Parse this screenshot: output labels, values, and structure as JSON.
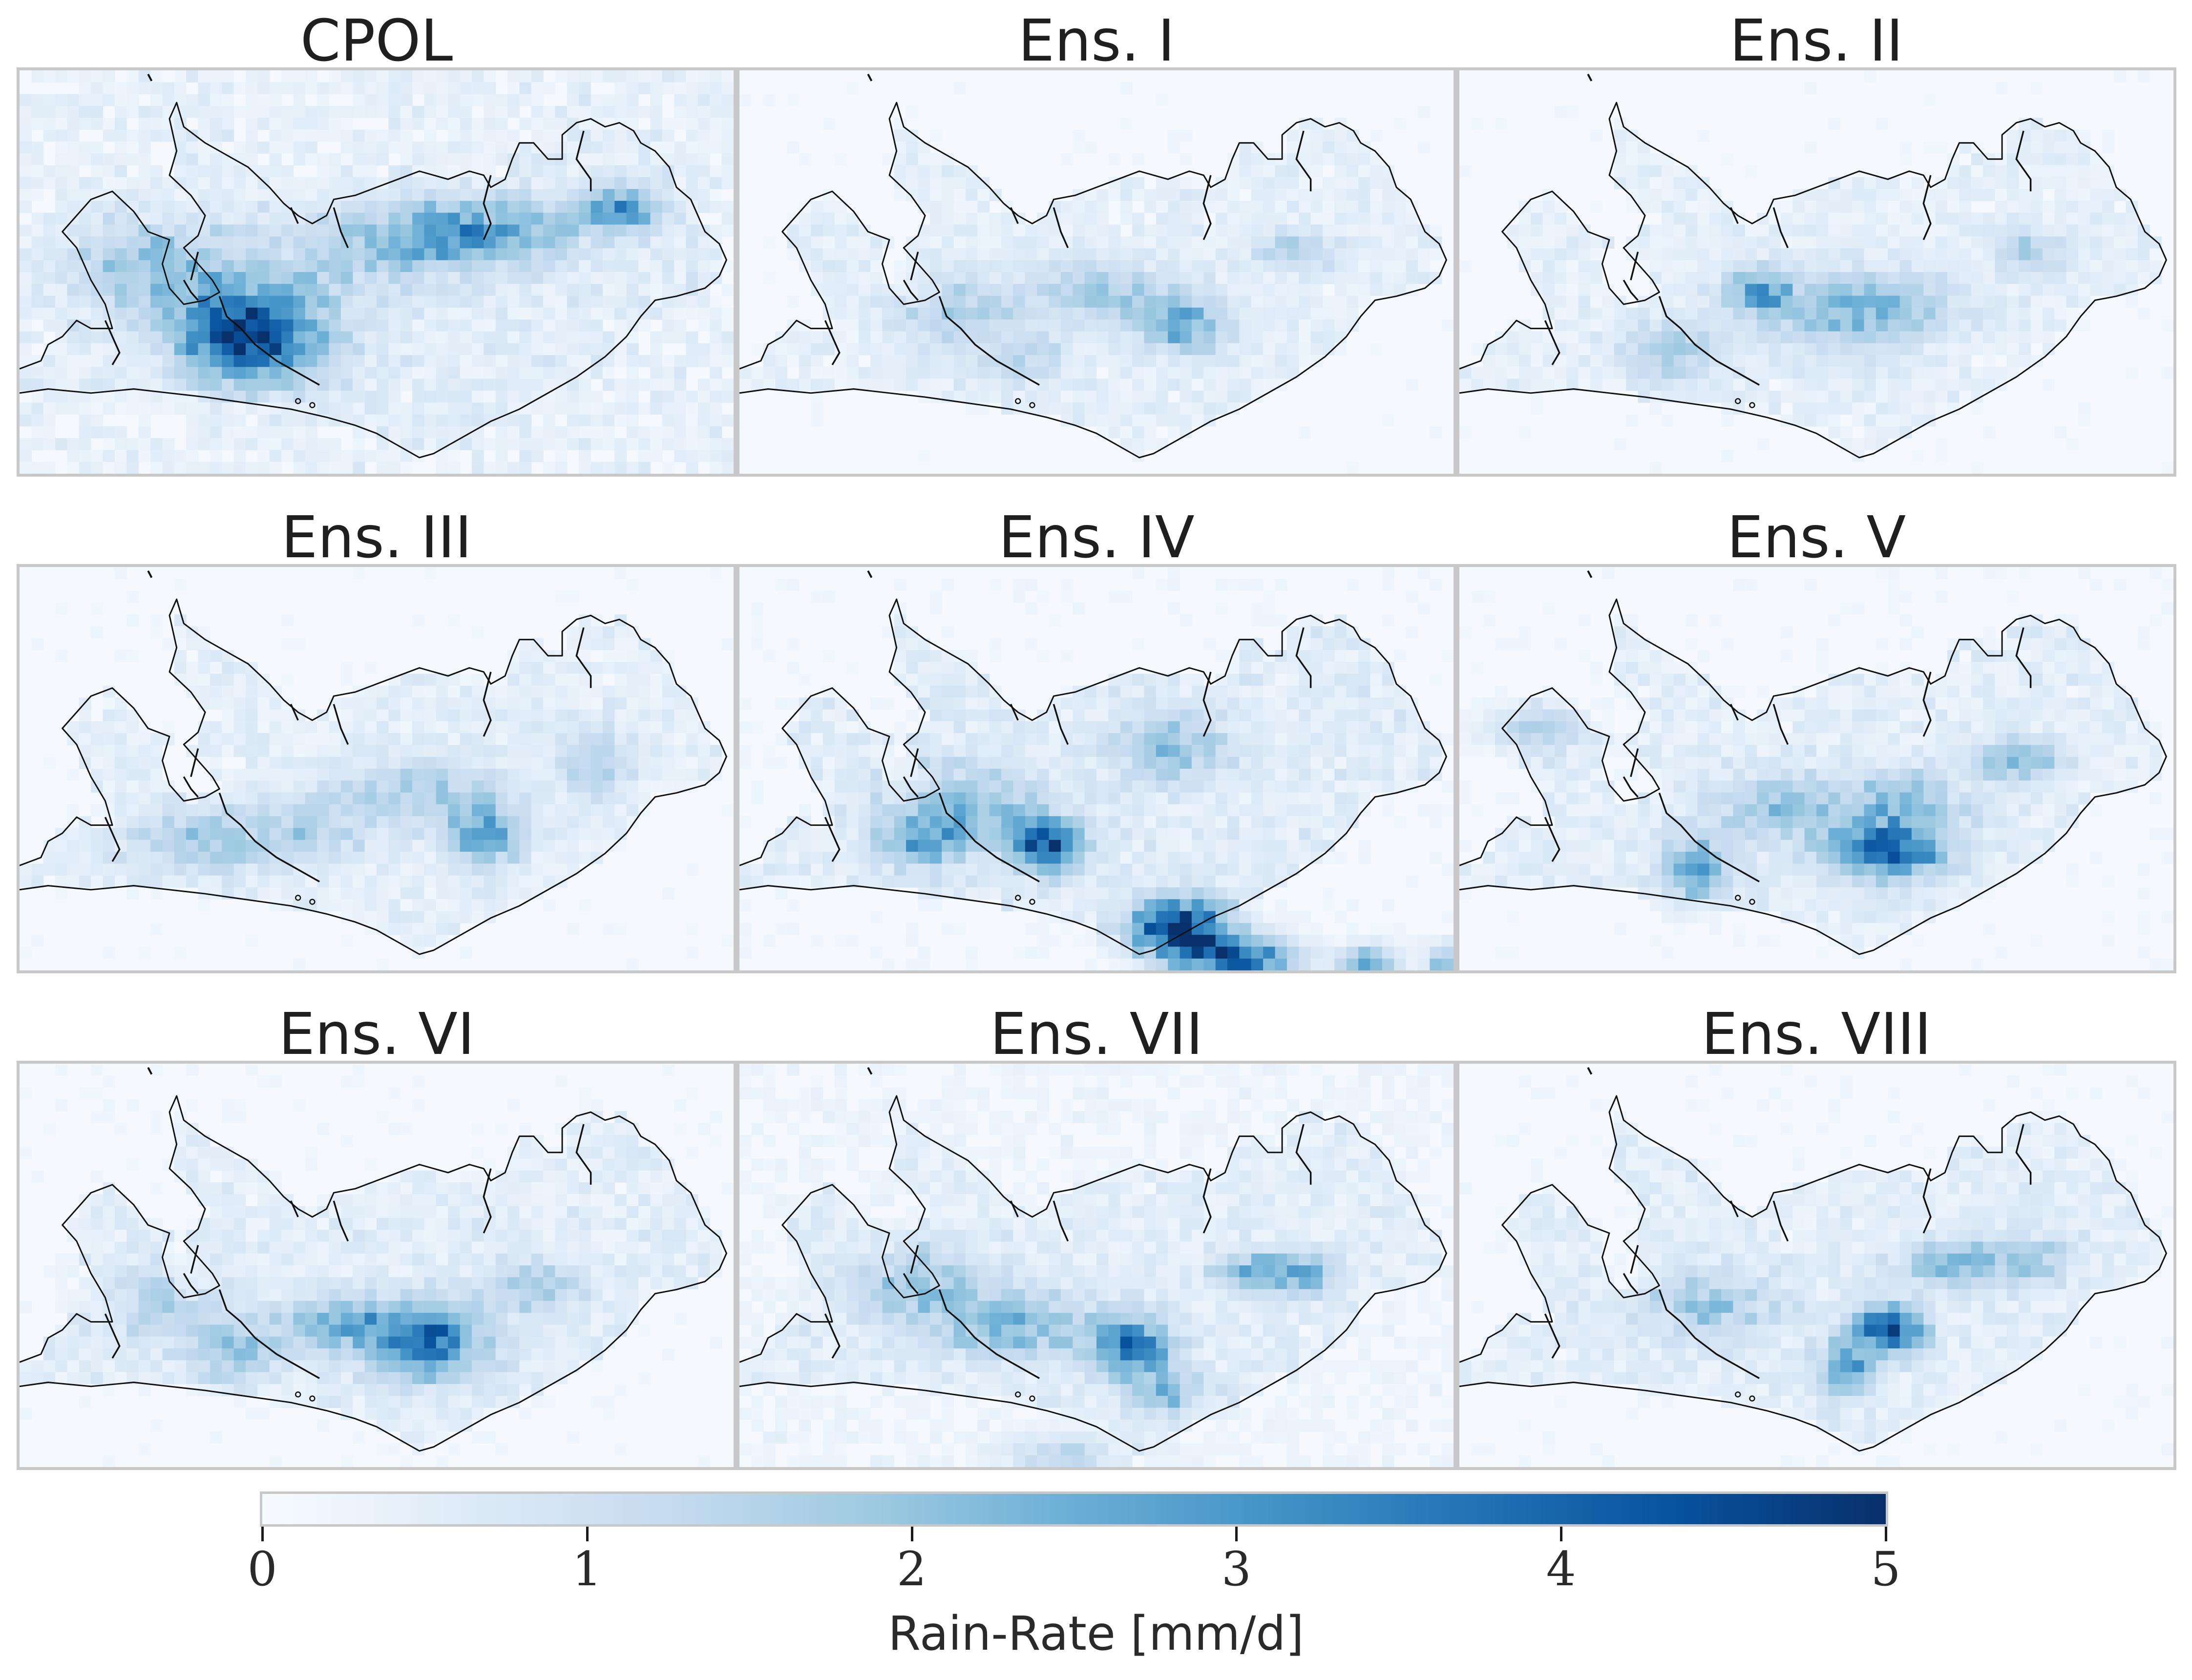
{
  "panels": [
    {
      "title": "CPOL",
      "seed": 11,
      "intensity": 1.0,
      "extra": 1.0,
      "blobs": [
        [
          0.35,
          0.65,
          0.09,
          0.11,
          0.55
        ],
        [
          0.29,
          0.66,
          0.07,
          0.1,
          0.45
        ],
        [
          0.84,
          0.35,
          0.05,
          0.05,
          0.6
        ],
        [
          0.6,
          0.4,
          0.07,
          0.07,
          0.35
        ],
        [
          0.2,
          0.5,
          0.12,
          0.12,
          0.3
        ],
        [
          0.5,
          0.45,
          0.12,
          0.1,
          0.25
        ],
        [
          0.7,
          0.4,
          0.08,
          0.08,
          0.3
        ]
      ]
    },
    {
      "title": "Ens. I",
      "seed": 23,
      "intensity": 0.8,
      "extra": 0.0,
      "blobs": [
        [
          0.62,
          0.63,
          0.06,
          0.07,
          0.55
        ],
        [
          0.5,
          0.55,
          0.1,
          0.08,
          0.3
        ],
        [
          0.3,
          0.6,
          0.08,
          0.1,
          0.3
        ],
        [
          0.78,
          0.45,
          0.06,
          0.05,
          0.3
        ],
        [
          0.4,
          0.72,
          0.06,
          0.06,
          0.25
        ]
      ]
    },
    {
      "title": "Ens. II",
      "seed": 37,
      "intensity": 0.8,
      "extra": 0.0,
      "blobs": [
        [
          0.42,
          0.55,
          0.05,
          0.06,
          0.5
        ],
        [
          0.6,
          0.58,
          0.1,
          0.08,
          0.35
        ],
        [
          0.3,
          0.7,
          0.06,
          0.08,
          0.35
        ],
        [
          0.8,
          0.45,
          0.05,
          0.05,
          0.3
        ],
        [
          0.52,
          0.62,
          0.1,
          0.1,
          0.25
        ]
      ]
    },
    {
      "title": "Ens. III",
      "seed": 41,
      "intensity": 0.8,
      "extra": 0.0,
      "blobs": [
        [
          0.65,
          0.66,
          0.05,
          0.09,
          0.55
        ],
        [
          0.55,
          0.55,
          0.1,
          0.08,
          0.3
        ],
        [
          0.25,
          0.68,
          0.1,
          0.08,
          0.3
        ],
        [
          0.8,
          0.48,
          0.05,
          0.08,
          0.3
        ],
        [
          0.4,
          0.65,
          0.1,
          0.08,
          0.25
        ]
      ]
    },
    {
      "title": "Ens. IV",
      "seed": 53,
      "intensity": 1.0,
      "extra": 0.0,
      "blobs": [
        [
          0.43,
          0.69,
          0.05,
          0.06,
          0.7
        ],
        [
          0.62,
          0.9,
          0.07,
          0.07,
          0.9
        ],
        [
          0.7,
          0.97,
          0.08,
          0.05,
          0.7
        ],
        [
          0.32,
          0.6,
          0.1,
          0.1,
          0.35
        ],
        [
          0.6,
          0.45,
          0.08,
          0.08,
          0.3
        ],
        [
          0.88,
          0.98,
          0.04,
          0.04,
          0.5
        ],
        [
          0.99,
          0.98,
          0.03,
          0.04,
          0.4
        ],
        [
          0.25,
          0.68,
          0.06,
          0.06,
          0.35
        ]
      ]
    },
    {
      "title": "Ens. V",
      "seed": 67,
      "intensity": 0.9,
      "extra": 0.0,
      "blobs": [
        [
          0.6,
          0.71,
          0.08,
          0.06,
          0.75
        ],
        [
          0.62,
          0.6,
          0.08,
          0.08,
          0.4
        ],
        [
          0.33,
          0.75,
          0.05,
          0.08,
          0.45
        ],
        [
          0.78,
          0.48,
          0.06,
          0.05,
          0.4
        ],
        [
          0.45,
          0.6,
          0.1,
          0.08,
          0.3
        ],
        [
          0.1,
          0.4,
          0.08,
          0.06,
          0.2
        ]
      ]
    },
    {
      "title": "Ens. VI",
      "seed": 71,
      "intensity": 0.9,
      "extra": 0.0,
      "blobs": [
        [
          0.57,
          0.69,
          0.08,
          0.09,
          0.7
        ],
        [
          0.45,
          0.65,
          0.1,
          0.07,
          0.35
        ],
        [
          0.3,
          0.72,
          0.06,
          0.06,
          0.35
        ],
        [
          0.72,
          0.55,
          0.06,
          0.06,
          0.3
        ],
        [
          0.2,
          0.6,
          0.1,
          0.1,
          0.2
        ]
      ]
    },
    {
      "title": "Ens. VII",
      "seed": 83,
      "intensity": 0.9,
      "extra": 0.5,
      "blobs": [
        [
          0.55,
          0.7,
          0.06,
          0.08,
          0.65
        ],
        [
          0.38,
          0.65,
          0.1,
          0.08,
          0.4
        ],
        [
          0.72,
          0.52,
          0.05,
          0.05,
          0.45
        ],
        [
          0.8,
          0.52,
          0.04,
          0.05,
          0.4
        ],
        [
          0.25,
          0.55,
          0.1,
          0.1,
          0.3
        ],
        [
          0.6,
          0.82,
          0.05,
          0.05,
          0.35
        ],
        [
          0.45,
          0.97,
          0.08,
          0.05,
          0.25
        ]
      ]
    },
    {
      "title": "Ens. VIII",
      "seed": 97,
      "intensity": 0.9,
      "extra": 0.0,
      "blobs": [
        [
          0.6,
          0.66,
          0.05,
          0.06,
          0.8
        ],
        [
          0.54,
          0.76,
          0.04,
          0.06,
          0.55
        ],
        [
          0.7,
          0.5,
          0.08,
          0.06,
          0.35
        ],
        [
          0.35,
          0.6,
          0.1,
          0.08,
          0.3
        ],
        [
          0.8,
          0.48,
          0.06,
          0.05,
          0.25
        ]
      ]
    }
  ],
  "colorbar": {
    "label": "Rain-Rate [mm/d]",
    "ticks": [
      "0",
      "1",
      "2",
      "3",
      "4",
      "5"
    ],
    "min": 0,
    "max": 5,
    "colormap": [
      "#f7fbff",
      "#deebf7",
      "#c6dbef",
      "#9ecae1",
      "#6baed6",
      "#4292c6",
      "#2171b5",
      "#08519c",
      "#08306b"
    ]
  },
  "chart_data": {
    "type": "heatmap",
    "title": "",
    "panels": [
      "CPOL",
      "Ens. I",
      "Ens. II",
      "Ens. III",
      "Ens. IV",
      "Ens. V",
      "Ens. VI",
      "Ens. VII",
      "Ens. VIII"
    ],
    "colorbar_label": "Rain-Rate [mm/d]",
    "value_range": [
      0,
      5
    ],
    "colorbar_ticks": [
      0,
      1,
      2,
      3,
      4,
      5
    ],
    "colormap": "Blues",
    "grid": false
  }
}
